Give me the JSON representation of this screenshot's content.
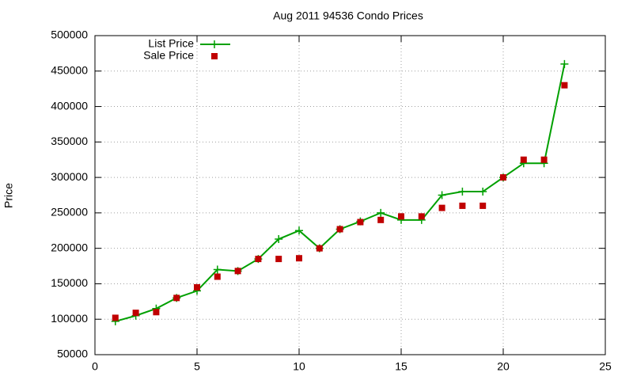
{
  "chart_data": {
    "type": "line",
    "title": "Aug 2011 94536 Condo Prices",
    "y_label": "Price",
    "x": [
      1,
      2,
      3,
      4,
      5,
      6,
      7,
      8,
      9,
      10,
      11,
      12,
      13,
      14,
      15,
      16,
      17,
      18,
      19,
      20,
      21,
      22,
      23
    ],
    "series": [
      {
        "name": "List Price",
        "color": "#00a000",
        "style": "linespoints",
        "values": [
          97000,
          105000,
          115000,
          130000,
          140000,
          170000,
          168000,
          185000,
          213000,
          225000,
          200000,
          227000,
          238000,
          250000,
          240000,
          240000,
          275000,
          280000,
          280000,
          300000,
          320000,
          320000,
          460000
        ]
      },
      {
        "name": "Sale Price",
        "color": "#c00000",
        "style": "points",
        "values": [
          102000,
          109000,
          110000,
          130000,
          145000,
          160000,
          168000,
          185000,
          185000,
          186000,
          200000,
          227000,
          237000,
          240000,
          245000,
          245000,
          257000,
          260000,
          260000,
          300000,
          325000,
          325000,
          430000
        ]
      }
    ],
    "xlim": [
      0,
      25
    ],
    "xticks": [
      0,
      5,
      10,
      15,
      20,
      25
    ],
    "ylim": [
      50000,
      500000
    ],
    "yticks": [
      50000,
      100000,
      150000,
      200000,
      250000,
      300000,
      350000,
      400000,
      450000,
      500000
    ],
    "grid": true,
    "legend": "top-left"
  }
}
